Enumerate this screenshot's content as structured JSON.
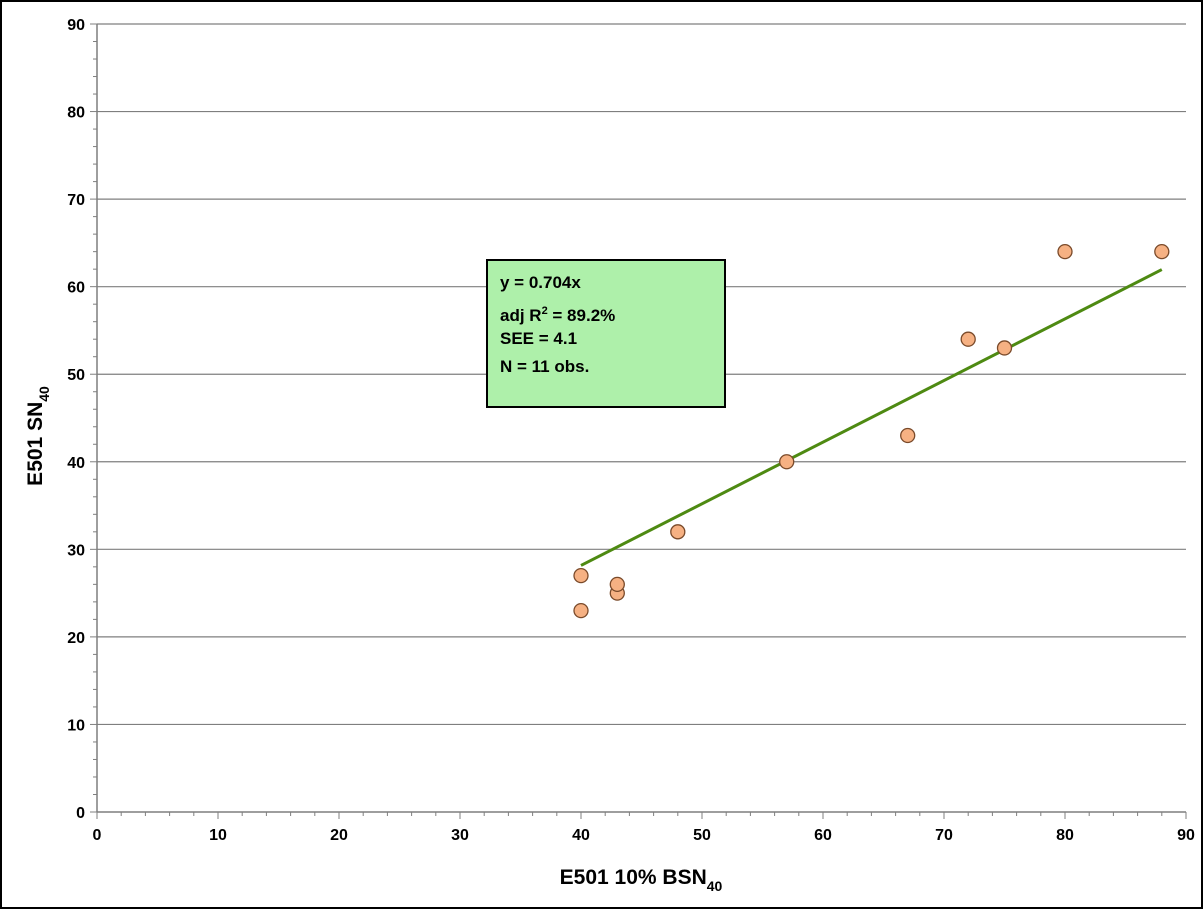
{
  "chart_data": {
    "type": "scatter",
    "title": "",
    "xlabel": "E501  10% BSN",
    "xlabel_sub": "40",
    "ylabel": "E501  SN",
    "ylabel_sub": "40",
    "xlim": [
      0,
      90
    ],
    "ylim": [
      0,
      90
    ],
    "xticks": [
      "0",
      "10",
      "20",
      "30",
      "40",
      "50",
      "60",
      "70",
      "80",
      "90"
    ],
    "yticks": [
      "0",
      "10",
      "20",
      "30",
      "40",
      "50",
      "60",
      "70",
      "80",
      "90"
    ],
    "grid": "horizontal",
    "points": [
      {
        "x": 40,
        "y": 27
      },
      {
        "x": 40,
        "y": 23
      },
      {
        "x": 43,
        "y": 25
      },
      {
        "x": 43,
        "y": 26
      },
      {
        "x": 48,
        "y": 32
      },
      {
        "x": 57,
        "y": 40
      },
      {
        "x": 67,
        "y": 43
      },
      {
        "x": 72,
        "y": 54
      },
      {
        "x": 75,
        "y": 53
      },
      {
        "x": 80,
        "y": 64
      },
      {
        "x": 88,
        "y": 64
      }
    ],
    "trendline": {
      "slope": 0.704,
      "x_start": 40,
      "x_end": 88
    },
    "colors": {
      "points_fill": "#f6b183",
      "points_stroke": "#7a4a2a",
      "trendline": "#4e8a12",
      "grid": "#7f7f7f",
      "stats_box_fill": "#aef0aa"
    },
    "stats": {
      "equation": "y = 0.704x",
      "r2_prefix": "adj R",
      "r2_sup": "2",
      "r2_value": " = 89.2%",
      "see": "SEE = 4.1",
      "n": "N = 11 obs."
    }
  }
}
